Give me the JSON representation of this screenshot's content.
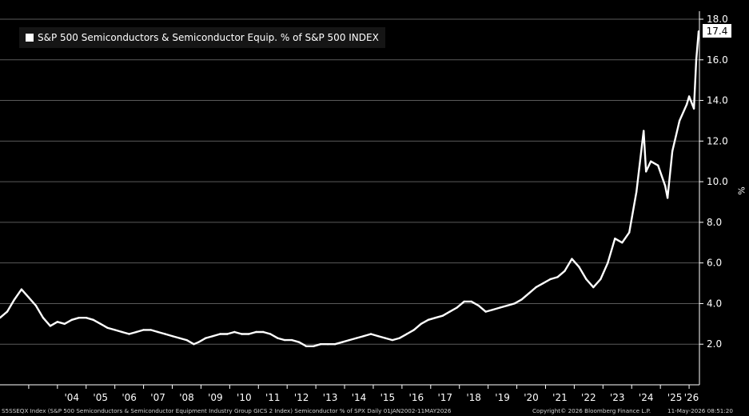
{
  "chart_data": {
    "type": "line",
    "title": "",
    "legend": [
      "S&P 500 Semiconductors & Semiconductor Equip. % of S&P 500 INDEX"
    ],
    "ylabel": "%",
    "ylim": [
      0,
      18.0
    ],
    "yticks": [
      "2.0",
      "4.0",
      "6.0",
      "8.0",
      "10.0",
      "12.0",
      "14.0",
      "16.0",
      "18.0"
    ],
    "xticks": [
      "'04",
      "'05",
      "'06",
      "'07",
      "'08",
      "'09",
      "'10",
      "'11",
      "'12",
      "'13",
      "'14",
      "'15",
      "'16",
      "'17",
      "'18",
      "'19",
      "'20",
      "'21",
      "'22",
      "'23",
      "'24",
      "'25",
      "'26"
    ],
    "last_value": "17.4",
    "series": [
      {
        "color": "#ffffff",
        "x": [
          "2002-01",
          "2002-04",
          "2002-07",
          "2002-10",
          "2003-01",
          "2003-04",
          "2003-07",
          "2003-10",
          "2004-01",
          "2004-04",
          "2004-07",
          "2004-10",
          "2005-01",
          "2005-04",
          "2005-07",
          "2005-10",
          "2006-01",
          "2006-04",
          "2006-07",
          "2006-10",
          "2007-01",
          "2007-04",
          "2007-07",
          "2007-10",
          "2008-01",
          "2008-04",
          "2008-07",
          "2008-10",
          "2008-12",
          "2009-03",
          "2009-06",
          "2009-09",
          "2009-12",
          "2010-03",
          "2010-06",
          "2010-09",
          "2010-12",
          "2011-03",
          "2011-06",
          "2011-09",
          "2011-12",
          "2012-03",
          "2012-06",
          "2012-09",
          "2012-12",
          "2013-03",
          "2013-06",
          "2013-09",
          "2013-12",
          "2014-03",
          "2014-06",
          "2014-09",
          "2014-12",
          "2015-03",
          "2015-06",
          "2015-09",
          "2015-12",
          "2016-03",
          "2016-06",
          "2016-09",
          "2016-12",
          "2017-03",
          "2017-06",
          "2017-09",
          "2017-12",
          "2018-03",
          "2018-06",
          "2018-09",
          "2018-12",
          "2019-03",
          "2019-06",
          "2019-09",
          "2019-12",
          "2020-03",
          "2020-06",
          "2020-09",
          "2020-12",
          "2021-03",
          "2021-06",
          "2021-09",
          "2021-12",
          "2022-03",
          "2022-06",
          "2022-09",
          "2022-12",
          "2023-03",
          "2023-06",
          "2023-09",
          "2023-12",
          "2024-03",
          "2024-06",
          "2024-07",
          "2024-09",
          "2024-12",
          "2025-03",
          "2025-04",
          "2025-06",
          "2025-09",
          "2025-12",
          "2026-01",
          "2026-03",
          "2026-04",
          "2026-05"
        ],
        "y": [
          3.3,
          3.6,
          4.2,
          4.7,
          4.3,
          3.9,
          3.3,
          2.9,
          3.1,
          3.0,
          3.2,
          3.3,
          3.3,
          3.2,
          3.0,
          2.8,
          2.7,
          2.6,
          2.5,
          2.6,
          2.7,
          2.7,
          2.6,
          2.5,
          2.4,
          2.3,
          2.2,
          2.0,
          2.1,
          2.3,
          2.4,
          2.5,
          2.5,
          2.6,
          2.5,
          2.5,
          2.6,
          2.6,
          2.5,
          2.3,
          2.2,
          2.2,
          2.1,
          1.9,
          1.9,
          2.0,
          2.0,
          2.0,
          2.1,
          2.2,
          2.3,
          2.4,
          2.5,
          2.4,
          2.3,
          2.2,
          2.3,
          2.5,
          2.7,
          3.0,
          3.2,
          3.3,
          3.4,
          3.6,
          3.8,
          4.1,
          4.1,
          3.9,
          3.6,
          3.7,
          3.8,
          3.9,
          4.0,
          4.2,
          4.5,
          4.8,
          5.0,
          5.2,
          5.3,
          5.6,
          6.2,
          5.8,
          5.2,
          4.8,
          5.2,
          6.0,
          7.2,
          7.0,
          7.5,
          9.5,
          12.5,
          10.5,
          11.0,
          10.8,
          9.8,
          9.2,
          11.5,
          13.0,
          13.8,
          14.2,
          13.6,
          16.0,
          17.4
        ]
      }
    ]
  },
  "footer": {
    "left": "S5SSEQX Index (S&P 500 Semiconductors & Semiconductor Equipment Industry Group GICS 2 Index) Semiconductor % of SPX Daily 01JAN2002-11MAY2026",
    "middle": "Copyright© 2026 Bloomberg Finance L.P.",
    "right": "11-May-2026 08:51:20"
  }
}
